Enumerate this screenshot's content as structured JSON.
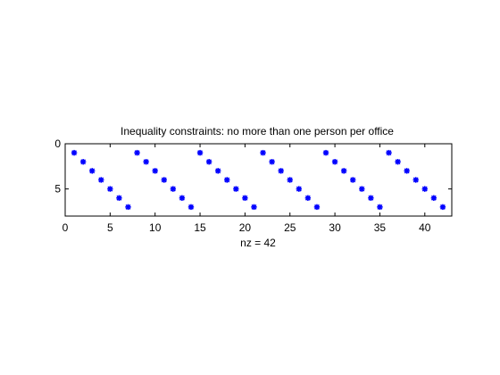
{
  "chart_data": {
    "type": "scatter",
    "title": "Inequality constraints: no more than one person per office",
    "xlabel": "nz = 42",
    "ylabel": "",
    "xlim": [
      0,
      43
    ],
    "ylim": [
      8,
      0
    ],
    "y_reversed": true,
    "xticks": [
      0,
      5,
      10,
      15,
      20,
      25,
      30,
      35,
      40
    ],
    "yticks": [
      0,
      5
    ],
    "grid": false,
    "marker": "*",
    "marker_color": "#0000ff",
    "points": [
      {
        "x": 1,
        "y": 1
      },
      {
        "x": 2,
        "y": 2
      },
      {
        "x": 3,
        "y": 3
      },
      {
        "x": 4,
        "y": 4
      },
      {
        "x": 5,
        "y": 5
      },
      {
        "x": 6,
        "y": 6
      },
      {
        "x": 7,
        "y": 7
      },
      {
        "x": 8,
        "y": 1
      },
      {
        "x": 9,
        "y": 2
      },
      {
        "x": 10,
        "y": 3
      },
      {
        "x": 11,
        "y": 4
      },
      {
        "x": 12,
        "y": 5
      },
      {
        "x": 13,
        "y": 6
      },
      {
        "x": 14,
        "y": 7
      },
      {
        "x": 15,
        "y": 1
      },
      {
        "x": 16,
        "y": 2
      },
      {
        "x": 17,
        "y": 3
      },
      {
        "x": 18,
        "y": 4
      },
      {
        "x": 19,
        "y": 5
      },
      {
        "x": 20,
        "y": 6
      },
      {
        "x": 21,
        "y": 7
      },
      {
        "x": 22,
        "y": 1
      },
      {
        "x": 23,
        "y": 2
      },
      {
        "x": 24,
        "y": 3
      },
      {
        "x": 25,
        "y": 4
      },
      {
        "x": 26,
        "y": 5
      },
      {
        "x": 27,
        "y": 6
      },
      {
        "x": 28,
        "y": 7
      },
      {
        "x": 29,
        "y": 1
      },
      {
        "x": 30,
        "y": 2
      },
      {
        "x": 31,
        "y": 3
      },
      {
        "x": 32,
        "y": 4
      },
      {
        "x": 33,
        "y": 5
      },
      {
        "x": 34,
        "y": 6
      },
      {
        "x": 35,
        "y": 7
      },
      {
        "x": 36,
        "y": 1
      },
      {
        "x": 37,
        "y": 2
      },
      {
        "x": 38,
        "y": 3
      },
      {
        "x": 39,
        "y": 4
      },
      {
        "x": 40,
        "y": 5
      },
      {
        "x": 41,
        "y": 6
      },
      {
        "x": 42,
        "y": 7
      }
    ]
  }
}
